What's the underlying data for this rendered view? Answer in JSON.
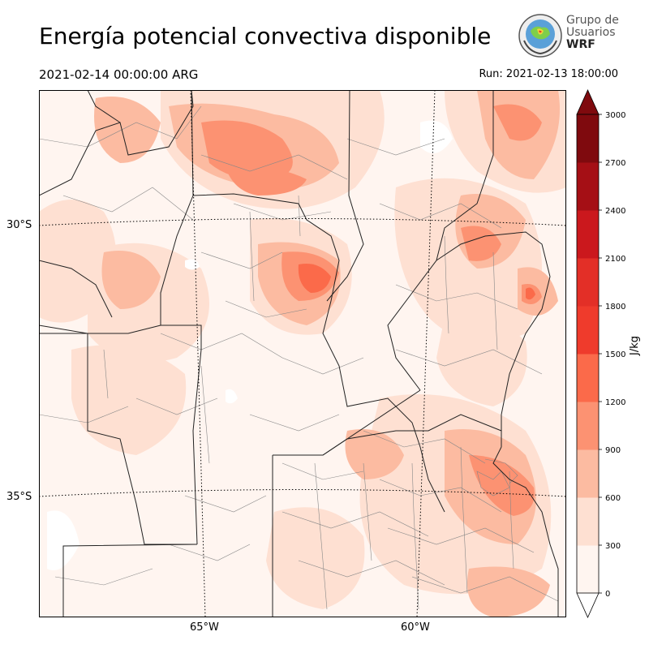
{
  "header": {
    "title": "Energía potencial convectiva disponible",
    "valid_time": "2021-02-14 00:00:00 ARG",
    "run_time": "Run: 2021-02-13 18:00:00"
  },
  "logo": {
    "line1": "Grupo de",
    "line2": "Usuarios",
    "line3": "WRF"
  },
  "map": {
    "lat_labels": [
      "30°S",
      "35°S"
    ],
    "lon_labels": [
      "65°W",
      "60°W"
    ],
    "colors": {
      "c0": "#fff5f0",
      "c300": "#fee0d2",
      "c600": "#fcbba1",
      "c900": "#fc9272",
      "c1200": "#fb6a4a",
      "border": "#222222",
      "dept": "#888888"
    }
  },
  "colorbar": {
    "ticks": [
      "0",
      "300",
      "600",
      "900",
      "1200",
      "1500",
      "1800",
      "2100",
      "2400",
      "2700",
      "3000"
    ],
    "unit": "J/kg",
    "colors": [
      "#fff5f0",
      "#fee0d2",
      "#fcbba1",
      "#fc9272",
      "#fb6a4a",
      "#ef3b2c",
      "#e32f27",
      "#cb181d",
      "#a50f15",
      "#7f0a0e"
    ]
  }
}
